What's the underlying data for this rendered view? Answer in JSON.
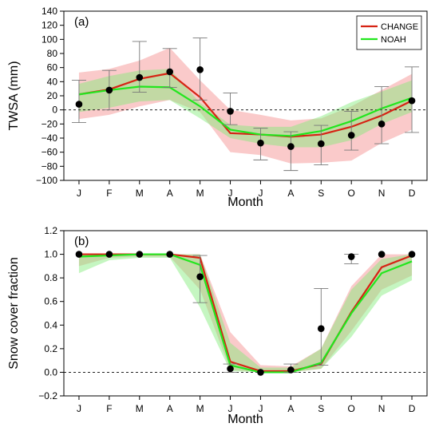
{
  "chart_data": [
    {
      "type": "line",
      "panel_label": "(a)",
      "xlabel": "Month",
      "ylabel": "TWSA (mm)",
      "categories": [
        "J",
        "F",
        "M",
        "A",
        "M",
        "J",
        "J",
        "A",
        "S",
        "O",
        "N",
        "D"
      ],
      "ylim": [
        -100,
        140
      ],
      "yticks": [
        -100,
        -80,
        -60,
        -40,
        -20,
        0,
        20,
        40,
        60,
        80,
        100,
        120,
        140
      ],
      "zero_line": true,
      "legend": {
        "position": "top-right",
        "entries": [
          "CHANGE",
          "NOAH"
        ]
      },
      "series": [
        {
          "name": "CHANGE",
          "color": "#d62314",
          "band_color": "#f58a8a",
          "values": [
            22,
            29,
            44,
            52,
            18,
            -33,
            -35,
            -38,
            -35,
            -24,
            -8,
            13
          ],
          "lower": [
            -13,
            -7,
            5,
            14,
            -3,
            -60,
            -64,
            -76,
            -75,
            -72,
            -47,
            -28
          ],
          "upper": [
            53,
            58,
            70,
            88,
            42,
            0,
            -7,
            -15,
            -12,
            5,
            28,
            51
          ]
        },
        {
          "name": "NOAH",
          "color": "#22e61e",
          "band_color": "#7eea76",
          "values": [
            22,
            28,
            33,
            32,
            5,
            -28,
            -35,
            -37,
            -30,
            -16,
            2,
            17
          ],
          "lower": [
            -3,
            3,
            12,
            14,
            -12,
            -40,
            -48,
            -53,
            -53,
            -43,
            -20,
            -3
          ],
          "upper": [
            37,
            48,
            56,
            58,
            10,
            -21,
            -24,
            -24,
            -9,
            11,
            26,
            42
          ]
        }
      ],
      "observed": {
        "values": [
          8,
          28,
          46,
          54,
          57,
          -2,
          -47,
          -52,
          -48,
          -36,
          -20,
          13
        ],
        "err_low": [
          -18,
          0,
          25,
          32,
          14,
          -21,
          -71,
          -86,
          -78,
          -57,
          -48,
          -32
        ],
        "err_high": [
          42,
          56,
          97,
          87,
          102,
          24,
          -26,
          -31,
          -22,
          -2,
          33,
          61
        ]
      }
    },
    {
      "type": "line",
      "panel_label": "(b)",
      "xlabel": "Month",
      "ylabel": "Snow cover fraction",
      "categories": [
        "J",
        "F",
        "M",
        "A",
        "M",
        "J",
        "J",
        "A",
        "S",
        "O",
        "N",
        "D"
      ],
      "ylim": [
        -0.2,
        1.2
      ],
      "yticks": [
        -0.2,
        0.0,
        0.2,
        0.4,
        0.6,
        0.8,
        1.0,
        1.2
      ],
      "ytick_labels": [
        "−0.2",
        "0.0",
        "0.2",
        "0.4",
        "0.6",
        "0.8",
        "1.0",
        "1.2"
      ],
      "zero_line": true,
      "series": [
        {
          "name": "CHANGE",
          "color": "#d62314",
          "band_color": "#f58a8a",
          "values": [
            1.0,
            1.0,
            1.0,
            1.0,
            0.97,
            0.09,
            0.01,
            0.01,
            0.07,
            0.51,
            0.89,
            0.99
          ],
          "lower": [
            0.9,
            0.97,
            0.98,
            0.98,
            0.7,
            0.02,
            0.0,
            0.0,
            0.03,
            0.35,
            0.7,
            0.82
          ],
          "upper": [
            1.0,
            1.0,
            1.0,
            1.0,
            1.0,
            0.34,
            0.06,
            0.05,
            0.2,
            0.73,
            1.0,
            1.0
          ]
        },
        {
          "name": "NOAH",
          "color": "#22e61e",
          "band_color": "#7eea76",
          "values": [
            0.98,
            0.99,
            1.0,
            1.0,
            0.91,
            0.06,
            0.0,
            0.0,
            0.08,
            0.5,
            0.84,
            0.94
          ],
          "lower": [
            0.84,
            0.95,
            0.97,
            0.97,
            0.55,
            0.01,
            0.0,
            0.0,
            0.03,
            0.3,
            0.65,
            0.78
          ],
          "upper": [
            1.0,
            1.0,
            1.0,
            1.0,
            1.0,
            0.25,
            0.04,
            0.04,
            0.2,
            0.7,
            0.96,
            1.0
          ]
        }
      ],
      "observed": {
        "values": [
          1.0,
          1.0,
          1.0,
          1.0,
          0.81,
          0.03,
          0.0,
          0.02,
          0.37,
          0.98,
          1.0,
          1.0
        ],
        "err_low": [
          1.0,
          1.0,
          1.0,
          1.0,
          0.59,
          0.0,
          0.0,
          0.0,
          0.06,
          0.92,
          1.0,
          1.0
        ],
        "err_high": [
          1.0,
          1.0,
          1.0,
          1.0,
          0.99,
          0.07,
          0.0,
          0.07,
          0.71,
          1.0,
          1.0,
          1.0
        ]
      }
    }
  ]
}
